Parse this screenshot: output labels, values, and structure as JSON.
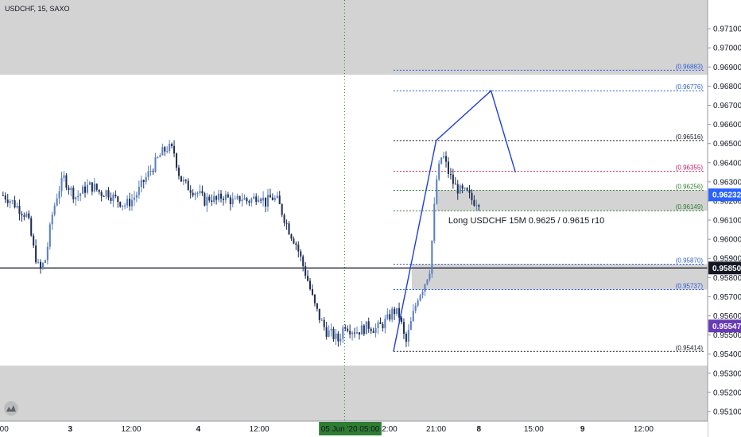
{
  "chart_data": {
    "type": "candlestick",
    "title": "USDCHF, 15, SAXO",
    "ylim": [
      0.9505,
      0.9725
    ],
    "y_ticks": [
      "0.97100",
      "0.97000",
      "0.96900",
      "0.96800",
      "0.96700",
      "0.96600",
      "0.96500",
      "0.96400",
      "0.96300",
      "0.96200",
      "0.96100",
      "0.96000",
      "0.95900",
      "0.95800",
      "0.95700",
      "0.95600",
      "0.95500",
      "0.95400",
      "0.95300",
      "0.95200",
      "0.95100"
    ],
    "x_ticks": [
      {
        "label": ":00",
        "idx": 0
      },
      {
        "label": "3",
        "idx": 11
      },
      {
        "label": "12:00",
        "idx": 21
      },
      {
        "label": "4",
        "idx": 32
      },
      {
        "label": "12:00",
        "idx": 42
      },
      {
        "label": "05 Jun '20",
        "idx": 57
      },
      {
        "label": "05:00",
        "idx": 61
      },
      {
        "label": "12:00",
        "idx": 63
      },
      {
        "label": "21:00",
        "idx": 71
      },
      {
        "label": "8",
        "idx": 78
      },
      {
        "label": "15:00",
        "idx": 87
      },
      {
        "label": "9",
        "idx": 95
      },
      {
        "label": "12:00",
        "idx": 105
      }
    ],
    "bar_count": 116,
    "current_index": 78,
    "colors": {
      "up": "#5b7fbe",
      "down": "#1f2f55",
      "path": "#1e3fe0",
      "zone": "#d3d3d3"
    },
    "price_path": [
      0.9623,
      0.9621,
      0.9618,
      0.9615,
      0.9612,
      0.9595,
      0.9583,
      0.959,
      0.9612,
      0.9625,
      0.9632,
      0.9626,
      0.9622,
      0.9625,
      0.9628,
      0.9627,
      0.9624,
      0.9625,
      0.9622,
      0.962,
      0.9618,
      0.962,
      0.9624,
      0.963,
      0.9635,
      0.964,
      0.9645,
      0.9648,
      0.9646,
      0.9632,
      0.9628,
      0.9626,
      0.9624,
      0.962,
      0.9622,
      0.962,
      0.9623,
      0.9621,
      0.9619,
      0.9622,
      0.962,
      0.9621,
      0.9624,
      0.9619,
      0.9622,
      0.962,
      0.9612,
      0.9604,
      0.9598,
      0.9588,
      0.9578,
      0.9566,
      0.9558,
      0.9552,
      0.955,
      0.9547,
      0.9556,
      0.9553,
      0.9552,
      0.9553,
      0.9555,
      0.9553,
      0.9555,
      0.9558,
      0.9563,
      0.956,
      0.9545,
      0.9558,
      0.957,
      0.9576,
      0.9585,
      0.963,
      0.9645,
      0.9635,
      0.9628,
      0.9625,
      0.9624,
      0.962,
      0.962
    ],
    "zones": [
      {
        "top": 0.9734,
        "bottom": 0.9686,
        "full_width": true
      },
      {
        "top": 0.9534,
        "bottom": 0.9486,
        "full_width": true
      },
      {
        "top": 0.96256,
        "bottom": 0.96149,
        "x_start_index": 71
      },
      {
        "top": 0.9587,
        "bottom": 0.95737,
        "x_start_index": 67
      }
    ],
    "levels": [
      {
        "price": 0.96883,
        "label": "(0.96883)",
        "color": "#2a5bd7",
        "x_start_index": 64
      },
      {
        "price": 0.96776,
        "label": "(0.96776)",
        "color": "#2a5bd7",
        "x_start_index": 64
      },
      {
        "price": 0.96516,
        "label": "(0.96516)",
        "color": "#131722",
        "x_start_index": 64
      },
      {
        "price": 0.96355,
        "label": "(0.96355)",
        "color": "#c2185b",
        "x_start_index": 64
      },
      {
        "price": 0.96256,
        "label": "(0.96256)",
        "color": "#2e7d32",
        "x_start_index": 64
      },
      {
        "price": 0.96149,
        "label": "(0.96149)",
        "color": "#2e7d32",
        "x_start_index": 64
      },
      {
        "price": 0.9587,
        "label": "(0.95870)",
        "color": "#2a5bd7",
        "x_start_index": 64
      },
      {
        "price": 0.95737,
        "label": "(0.95737)",
        "color": "#2a5bd7",
        "x_start_index": 64
      },
      {
        "price": 0.95414,
        "label": "(0.95414)",
        "color": "#131722",
        "x_start_index": 64
      }
    ],
    "hline": {
      "price": 0.9585
    },
    "projection": [
      {
        "idx": 64,
        "price": 0.95414
      },
      {
        "idx": 71,
        "price": 0.96516
      },
      {
        "idx": 80,
        "price": 0.96776
      },
      {
        "idx": 84,
        "price": 0.9635
      }
    ],
    "annotation": {
      "text": "Long USDCHF 15M 0.9625 / 0.9615 r10",
      "idx": 73,
      "price": 0.961
    },
    "price_tags": [
      {
        "price": 0.96232,
        "label": "0.96232",
        "color": "#2962ff"
      },
      {
        "price": 0.9585,
        "label": "0.95850",
        "color": "#131722"
      },
      {
        "price": 0.95547,
        "label": "0.95547",
        "color": "#673ab7"
      }
    ],
    "vertical_marker_index": 56,
    "date_highlight": {
      "label": "05 Jun '20  05:00",
      "color": "#2e7d32"
    }
  }
}
